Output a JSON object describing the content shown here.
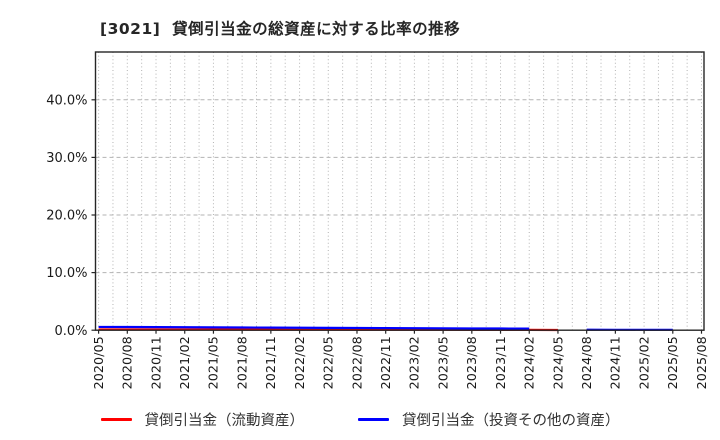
{
  "chart_data": {
    "type": "line",
    "title": "[3021]  貸倒引当金の総資産に対する比率の推移",
    "categories": [
      "2020/05",
      "2020/08",
      "2020/11",
      "2021/02",
      "2021/05",
      "2021/08",
      "2021/11",
      "2022/02",
      "2022/05",
      "2022/08",
      "2022/11",
      "2023/02",
      "2023/05",
      "2023/08",
      "2023/11",
      "2024/02",
      "2024/05",
      "2024/08",
      "2024/11",
      "2025/02",
      "2025/05",
      "2025/08"
    ],
    "series": [
      {
        "name": "貸倒引当金（流動資産）",
        "color": "#ff0000",
        "values": [
          0.13,
          0.12,
          0.12,
          0.11,
          0.11,
          0.1,
          0.1,
          0.09,
          0.09,
          0.08,
          0.08,
          0.07,
          0.07,
          0.06,
          0.06,
          0.05,
          0.04,
          null,
          null,
          null,
          null,
          null
        ]
      },
      {
        "name": "貸倒引当金（投資その他の資産）",
        "color": "#0000ff",
        "values": [
          0.57,
          0.55,
          0.53,
          0.51,
          0.49,
          0.47,
          0.45,
          0.43,
          0.41,
          0.39,
          0.37,
          0.35,
          0.33,
          0.31,
          0.29,
          0.27,
          null,
          0.08,
          0.07,
          0.06,
          0.06,
          null
        ]
      }
    ],
    "ylabel": "",
    "xlabel": "",
    "yticks": [
      {
        "label": "0.0%",
        "value": 0
      },
      {
        "label": "10.0%",
        "value": 10
      },
      {
        "label": "20.0%",
        "value": 20
      },
      {
        "label": "30.0%",
        "value": 30
      },
      {
        "label": "40.0%",
        "value": 40
      }
    ],
    "ylim": [
      0,
      48.3
    ],
    "grid": true,
    "legend_position": "bottom",
    "colors": {
      "axis": "#262626",
      "grid": "#b3b3b3",
      "tick_label": "#1a1a1a",
      "background": "#ffffff"
    }
  }
}
